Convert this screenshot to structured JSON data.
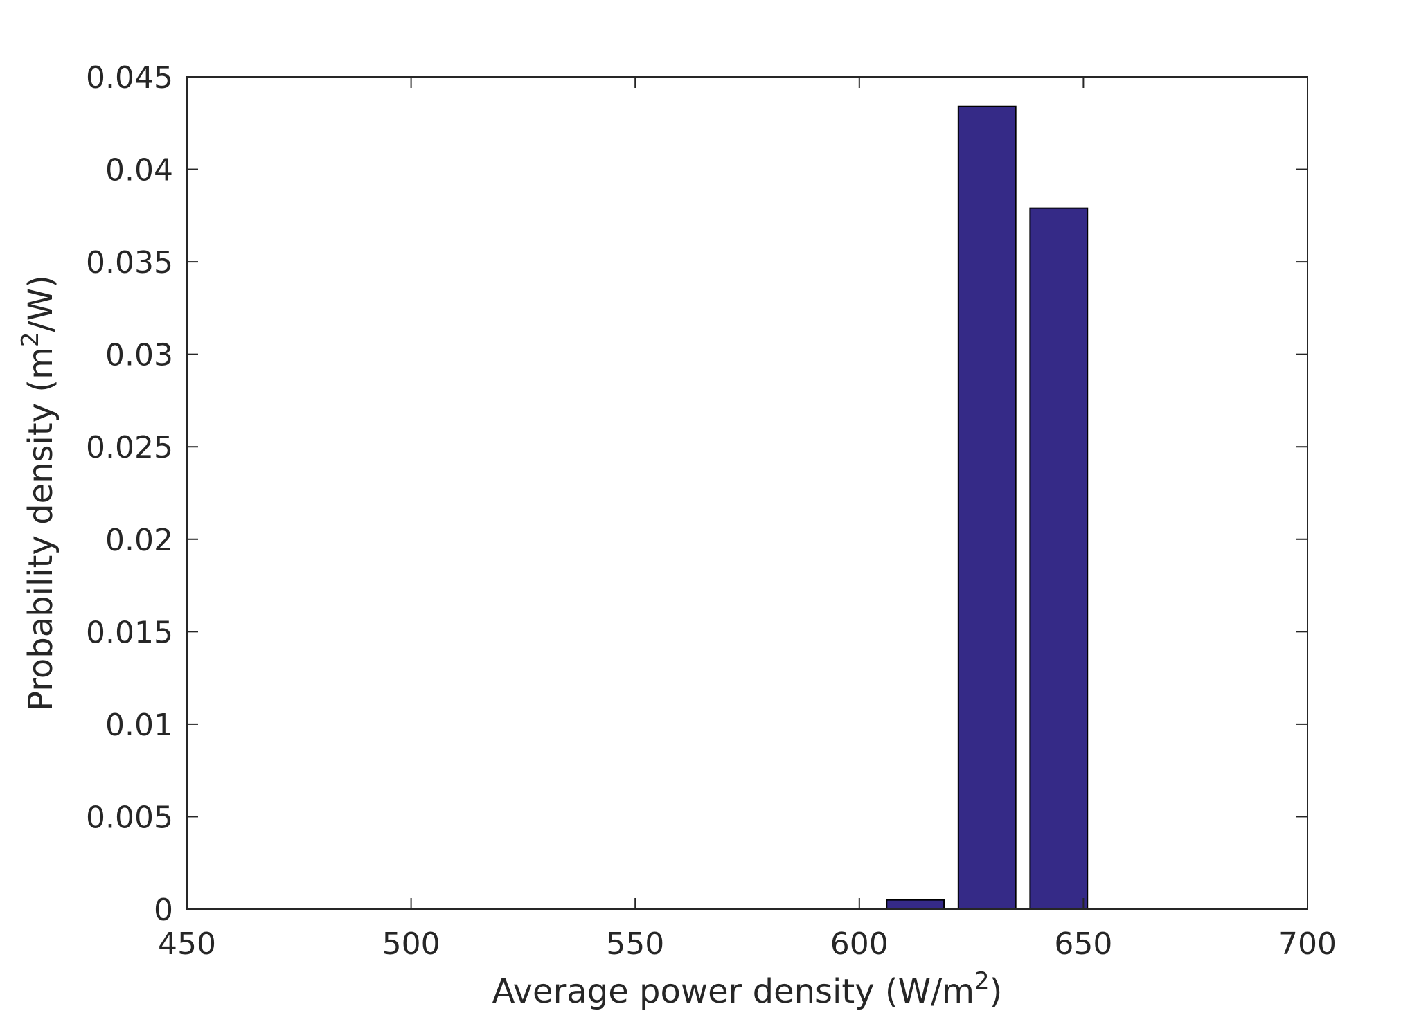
{
  "chart_data": {
    "type": "bar",
    "title": "",
    "xlabel": {
      "main": "Average power density (W/m",
      "sup": "2",
      "end": ")"
    },
    "ylabel": {
      "main": "Probability density (m",
      "sup": "2",
      "end": "/W)"
    },
    "xlim": [
      450,
      700
    ],
    "ylim": [
      0,
      0.045
    ],
    "xticks": [
      450,
      500,
      550,
      600,
      650,
      700
    ],
    "xtick_labels": [
      "450",
      "500",
      "550",
      "600",
      "650",
      "700"
    ],
    "yticks": [
      0,
      0.005,
      0.01,
      0.015,
      0.02,
      0.025,
      0.03,
      0.035,
      0.04,
      0.045
    ],
    "ytick_labels": [
      "0",
      "0.005",
      "0.01",
      "0.015",
      "0.02",
      "0.025",
      "0.03",
      "0.035",
      "0.04",
      "0.045"
    ],
    "bin_width": 16,
    "bars": [
      {
        "x": 612.5,
        "value": 0.0005
      },
      {
        "x": 628.5,
        "value": 0.0434
      },
      {
        "x": 644.5,
        "value": 0.0379
      }
    ],
    "grid": false,
    "bar_color": "#352a87"
  }
}
